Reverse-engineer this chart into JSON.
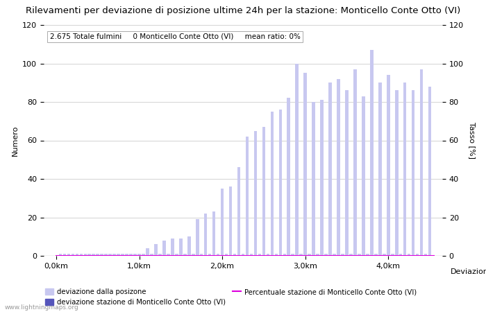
{
  "title": "Rilevamenti per deviazione di posizione ultime 24h per la stazione: Monticello Conte Otto (VI)",
  "subtitle": "2.675 Totale fulmini     0 Monticello Conte Otto (VI)     mean ratio: 0%",
  "ylabel_left": "Numero",
  "ylabel_right": "Tasso [%]",
  "xlabel_right": "Deviazioni",
  "ylim": [
    0,
    120
  ],
  "bar_positions": [
    0.05,
    0.1,
    0.15,
    0.2,
    0.25,
    0.3,
    0.35,
    0.4,
    0.45,
    0.5,
    0.55,
    0.6,
    0.65,
    0.7,
    0.75,
    0.8,
    0.85,
    0.9,
    0.95,
    1.0,
    1.05,
    1.1,
    1.15,
    1.2,
    1.25,
    1.3,
    1.35,
    1.4,
    1.45,
    1.5,
    1.55,
    1.6,
    1.65,
    1.7,
    1.75,
    1.8,
    1.85,
    1.9,
    1.95,
    2.0,
    2.05,
    2.1,
    2.15,
    2.2,
    2.25,
    2.3,
    2.35,
    2.4,
    2.45,
    2.5,
    2.55,
    2.6,
    2.65,
    2.7,
    2.75,
    2.8,
    2.85,
    2.9,
    2.95,
    3.0,
    3.05,
    3.1,
    3.15,
    3.2,
    3.25,
    3.3,
    3.35,
    3.4,
    3.45,
    3.5,
    3.55,
    3.6,
    3.65,
    3.7,
    3.75,
    3.8,
    3.85,
    3.9,
    3.95,
    4.0,
    4.05,
    4.1,
    4.15,
    4.2,
    4.25,
    4.3,
    4.35,
    4.4,
    4.45,
    4.5
  ],
  "bar_heights": [
    1,
    1,
    1,
    1,
    1,
    1,
    1,
    1,
    1,
    1,
    1,
    1,
    1,
    1,
    1,
    1,
    1,
    1,
    1,
    1,
    1,
    4,
    1,
    6,
    1,
    8,
    1,
    9,
    1,
    9,
    1,
    10,
    1,
    19,
    1,
    22,
    1,
    23,
    1,
    35,
    1,
    36,
    1,
    46,
    1,
    62,
    1,
    65,
    1,
    67,
    1,
    75,
    1,
    76,
    1,
    82,
    1,
    100,
    1,
    95,
    1,
    80,
    1,
    81,
    1,
    90,
    1,
    92,
    1,
    86,
    1,
    97,
    1,
    83,
    1,
    107,
    1,
    90,
    1,
    94,
    1,
    86,
    1,
    90,
    1,
    86,
    1,
    97,
    1,
    88
  ],
  "bar_color": "#c8c8f0",
  "bar_color_station": "#5555bb",
  "station_bar_indices": [],
  "line_y": 0,
  "line_color": "#dd00dd",
  "xtick_positions": [
    0.0,
    1.0,
    2.0,
    3.0,
    4.0
  ],
  "xtick_labels": [
    "0,0km",
    "1,0km",
    "2,0km",
    "3,0km",
    "4,0km"
  ],
  "ytick_positions": [
    0,
    20,
    40,
    60,
    80,
    100,
    120
  ],
  "grid_color": "#cccccc",
  "background_color": "#ffffff",
  "legend_label1": "deviazione dalla posizone",
  "legend_label2": "deviazione stazione di Monticello Conte Otto (VI)",
  "legend_label3": "Percentuale stazione di Monticello Conte Otto (VI)",
  "watermark": "www.lightningmaps.org",
  "bar_width": 0.038
}
